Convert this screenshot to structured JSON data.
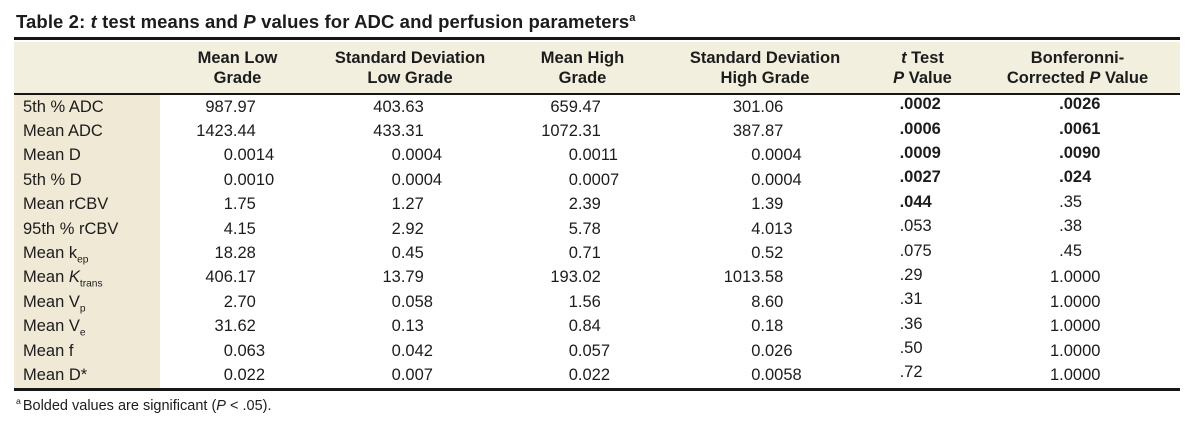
{
  "title": {
    "segments": [
      {
        "t": "Table 2: "
      },
      {
        "t": "t",
        "i": true
      },
      {
        "t": " test means and "
      },
      {
        "t": "P",
        "i": true
      },
      {
        "t": " values for ADC and perfusion parameters"
      },
      {
        "t": "a",
        "sup": true
      }
    ]
  },
  "table": {
    "columns": [
      {
        "line1": [],
        "line2": []
      },
      {
        "line1": [
          {
            "t": "Mean Low"
          }
        ],
        "line2": [
          {
            "t": "Grade"
          }
        ]
      },
      {
        "line1": [
          {
            "t": "Standard Deviation"
          }
        ],
        "line2": [
          {
            "t": "Low Grade"
          }
        ]
      },
      {
        "line1": [
          {
            "t": "Mean High"
          }
        ],
        "line2": [
          {
            "t": "Grade"
          }
        ]
      },
      {
        "line1": [
          {
            "t": "Standard Deviation"
          }
        ],
        "line2": [
          {
            "t": "High Grade"
          }
        ]
      },
      {
        "line1": [
          {
            "t": "t",
            "i": true
          },
          {
            "t": " Test"
          }
        ],
        "line2": [
          {
            "t": "P",
            "i": true
          },
          {
            "t": " Value"
          }
        ]
      },
      {
        "line1": [
          {
            "t": "Bonferonni-"
          }
        ],
        "line2": [
          {
            "t": "Corrected "
          },
          {
            "t": "P",
            "i": true
          },
          {
            "t": " Value"
          }
        ]
      }
    ],
    "rows": [
      {
        "label": [
          {
            "t": "5th % ADC"
          }
        ],
        "values": [
          "987.97",
          "403.63",
          "659.47",
          "301.06",
          ".0002",
          ".0026"
        ],
        "bold": [
          false,
          false,
          false,
          false,
          true,
          true
        ]
      },
      {
        "label": [
          {
            "t": "Mean ADC"
          }
        ],
        "values": [
          "1423.44",
          "433.31",
          "1072.31",
          "387.87",
          ".0006",
          ".0061"
        ],
        "bold": [
          false,
          false,
          false,
          false,
          true,
          true
        ]
      },
      {
        "label": [
          {
            "t": "Mean D"
          }
        ],
        "values": [
          "0.0014",
          "0.0004",
          "0.0011",
          "0.0004",
          ".0009",
          ".0090"
        ],
        "bold": [
          false,
          false,
          false,
          false,
          true,
          true
        ]
      },
      {
        "label": [
          {
            "t": "5th % D"
          }
        ],
        "values": [
          "0.0010",
          "0.0004",
          "0.0007",
          "0.0004",
          ".0027",
          ".024"
        ],
        "bold": [
          false,
          false,
          false,
          false,
          true,
          true
        ]
      },
      {
        "label": [
          {
            "t": "Mean rCBV"
          }
        ],
        "values": [
          "1.75",
          "1.27",
          "2.39",
          "1.39",
          ".044",
          ".35"
        ],
        "bold": [
          false,
          false,
          false,
          false,
          true,
          false
        ]
      },
      {
        "label": [
          {
            "t": "95th % rCBV"
          }
        ],
        "values": [
          "4.15",
          "2.92",
          "5.78",
          "4.013",
          ".053",
          ".38"
        ],
        "bold": [
          false,
          false,
          false,
          false,
          false,
          false
        ]
      },
      {
        "label": [
          {
            "t": "Mean k"
          },
          {
            "t": "ep",
            "sub": true
          }
        ],
        "values": [
          "18.28",
          "0.45",
          "0.71",
          "0.52",
          ".075",
          ".45"
        ],
        "bold": [
          false,
          false,
          false,
          false,
          false,
          false
        ]
      },
      {
        "label": [
          {
            "t": "Mean "
          },
          {
            "t": "K",
            "i": true
          },
          {
            "t": "trans",
            "sub": true
          }
        ],
        "values": [
          "406.17",
          "13.79",
          "193.02",
          "1013.58",
          ".29",
          "1.0000"
        ],
        "bold": [
          false,
          false,
          false,
          false,
          false,
          false
        ]
      },
      {
        "label": [
          {
            "t": "Mean V"
          },
          {
            "t": "p",
            "sub": true
          }
        ],
        "values": [
          "2.70",
          "0.058",
          "1.56",
          "8.60",
          ".31",
          "1.0000"
        ],
        "bold": [
          false,
          false,
          false,
          false,
          false,
          false
        ]
      },
      {
        "label": [
          {
            "t": "Mean V"
          },
          {
            "t": "e",
            "sub": true
          }
        ],
        "values": [
          "31.62",
          "0.13",
          "0.84",
          "0.18",
          ".36",
          "1.0000"
        ],
        "bold": [
          false,
          false,
          false,
          false,
          false,
          false
        ]
      },
      {
        "label": [
          {
            "t": "Mean f"
          }
        ],
        "values": [
          "0.063",
          "0.042",
          "0.057",
          "0.026",
          ".50",
          "1.0000"
        ],
        "bold": [
          false,
          false,
          false,
          false,
          false,
          false
        ]
      },
      {
        "label": [
          {
            "t": "Mean D*"
          }
        ],
        "values": [
          "0.022",
          "0.007",
          "0.022",
          "0.0058",
          ".72",
          "1.0000"
        ],
        "bold": [
          false,
          false,
          false,
          false,
          false,
          false
        ]
      }
    ]
  },
  "footnote": {
    "segments": [
      {
        "t": "a",
        "sup": true
      },
      {
        "t": "Bolded values are significant ("
      },
      {
        "t": "P",
        "i": true
      },
      {
        "t": " < .05)."
      }
    ]
  },
  "colors": {
    "header_band": "#f3efde",
    "stub_column": "#efe9d6",
    "rule": "#161616",
    "text": "#1c1c1c"
  }
}
